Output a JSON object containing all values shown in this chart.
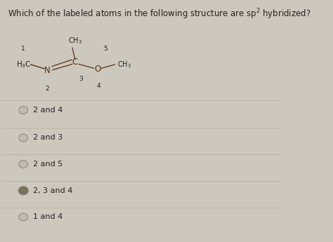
{
  "background_color": "#cdc8be",
  "question_part1": "Which of the labeled atoms in the following structure are sp",
  "question_sup": "2",
  "question_part2": " hybridized?",
  "question_fontsize": 8.5,
  "options": [
    {
      "text": "2 and 4",
      "selected": false
    },
    {
      "text": "2 and 3",
      "selected": false
    },
    {
      "text": "2 and 5",
      "selected": false
    },
    {
      "text": "2, 3 and 4",
      "selected": true
    },
    {
      "text": "1 and 4",
      "selected": false
    }
  ],
  "radio_color_unselected": "#c0bab0",
  "radio_color_selected": "#7a7060",
  "text_color": "#222222",
  "option_fontsize": 8.0,
  "divider_color": "#b0a898",
  "structure_color": "#5a3010"
}
